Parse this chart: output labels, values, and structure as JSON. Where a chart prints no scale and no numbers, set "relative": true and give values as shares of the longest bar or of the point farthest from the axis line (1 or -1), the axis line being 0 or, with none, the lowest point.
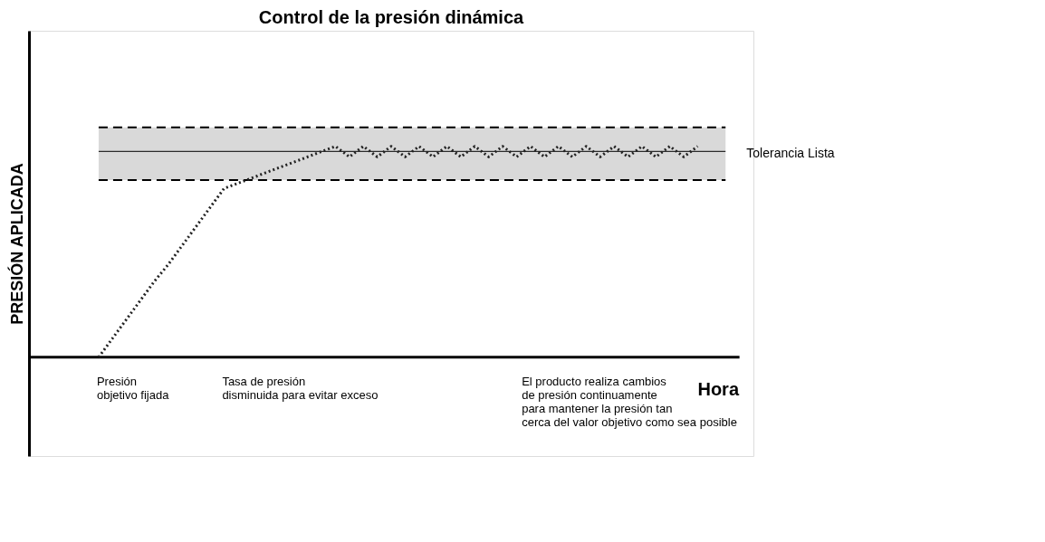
{
  "chart_data": {
    "type": "line",
    "relative": true,
    "title": "Control de la presión dinámica",
    "xlabel": "Hora",
    "ylabel": "PRESIÓN APLICADA",
    "categories": [
      null,
      null,
      null,
      null,
      null,
      null,
      null,
      null,
      null,
      null,
      null,
      null,
      null,
      null,
      null,
      null,
      null,
      null,
      null,
      null,
      null,
      null,
      null,
      null,
      null,
      null,
      null,
      null,
      null,
      null,
      null,
      null,
      null,
      null,
      null,
      null,
      null,
      null,
      null,
      null,
      null,
      null,
      null,
      null
    ],
    "series": [
      {
        "color": "#222222",
        "line_style": "dotted",
        "values": [
          0,
          0.09,
          0.18,
          0.27,
          0.36,
          0.44,
          0.53,
          0.62,
          0.71,
          0.8,
          0.825,
          0.85,
          0.875,
          0.9,
          0.925,
          0.95,
          0.975,
          1.0,
          0.95,
          1.0,
          0.95,
          1.0,
          0.95,
          1.0,
          0.95,
          1.0,
          0.95,
          1.0,
          0.95,
          1.0,
          0.95,
          1.0,
          0.95,
          1.0,
          0.95,
          1.0,
          0.95,
          1.0,
          0.95,
          1.0,
          0.95,
          1.0,
          0.95,
          1.0
        ]
      }
    ],
    "bands": [
      {
        "axis": "y",
        "from": 0.84,
        "to": 1.09,
        "label": "Tolerancia Lista",
        "color": "#d9d9d9"
      }
    ],
    "ref_lines": [
      {
        "axis": "y",
        "value": 0.976,
        "color": "#000000",
        "line_style": "solid"
      },
      {
        "axis": "y",
        "value": 0.84,
        "color": "#000000",
        "line_style": "dashed"
      },
      {
        "axis": "y",
        "value": 1.09,
        "color": "#000000",
        "line_style": "dashed"
      }
    ],
    "annotations": [
      "Presión\nobjetivo fijada",
      "Tasa de presión\ndisminuida para evitar exceso",
      "El producto realiza cambios\nde presión continuamente\npara mantener la presión tan\ncerca del valor objetivo como sea posible"
    ],
    "marker": "none",
    "grid": false
  }
}
